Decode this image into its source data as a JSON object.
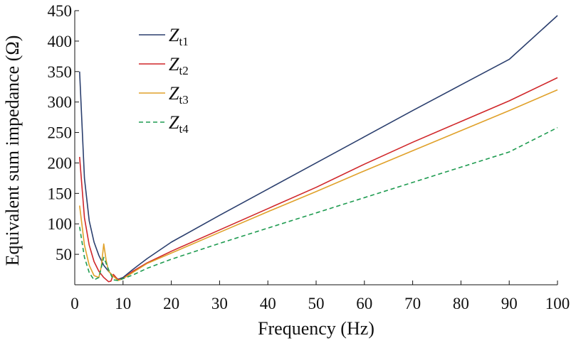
{
  "chart_data": {
    "type": "line",
    "xlabel": "Frequency (Hz)",
    "ylabel": "Equivalent sum impedance (Ω)",
    "xlim": [
      0,
      100
    ],
    "ylim": [
      0,
      450
    ],
    "x_ticks": [
      0,
      10,
      20,
      30,
      40,
      50,
      60,
      70,
      80,
      90,
      100
    ],
    "y_ticks": [
      50,
      100,
      150,
      200,
      250,
      300,
      350,
      400,
      450
    ],
    "grid": false,
    "legend_position": "top-left",
    "series": [
      {
        "name": "Zt1",
        "legend_main": "Z",
        "legend_sub": "t1",
        "color": "#2b3f6e",
        "dash": "solid",
        "points": [
          [
            1,
            350
          ],
          [
            2,
            175
          ],
          [
            3,
            105
          ],
          [
            4,
            70
          ],
          [
            5,
            48
          ],
          [
            6,
            32
          ],
          [
            7,
            22
          ],
          [
            8,
            14
          ],
          [
            9,
            9
          ],
          [
            10,
            12
          ],
          [
            12,
            25
          ],
          [
            15,
            43
          ],
          [
            20,
            70
          ],
          [
            30,
            114
          ],
          [
            40,
            157
          ],
          [
            50,
            200
          ],
          [
            60,
            243
          ],
          [
            70,
            286
          ],
          [
            80,
            328
          ],
          [
            90,
            370
          ],
          [
            100,
            442
          ]
        ]
      },
      {
        "name": "Zt2",
        "legend_main": "Z",
        "legend_sub": "t2",
        "color": "#d0272a",
        "dash": "solid",
        "points": [
          [
            1,
            210
          ],
          [
            2,
            110
          ],
          [
            3,
            65
          ],
          [
            4,
            38
          ],
          [
            5,
            22
          ],
          [
            6,
            12
          ],
          [
            7,
            5
          ],
          [
            7.5,
            6
          ],
          [
            8,
            17
          ],
          [
            9,
            8
          ],
          [
            10,
            10
          ],
          [
            12,
            22
          ],
          [
            15,
            36
          ],
          [
            20,
            55
          ],
          [
            30,
            90
          ],
          [
            40,
            125
          ],
          [
            50,
            160
          ],
          [
            60,
            198
          ],
          [
            70,
            234
          ],
          [
            80,
            268
          ],
          [
            90,
            302
          ],
          [
            100,
            340
          ]
        ]
      },
      {
        "name": "Zt3",
        "legend_main": "Z",
        "legend_sub": "t3",
        "color": "#e0a12a",
        "dash": "solid",
        "points": [
          [
            1,
            130
          ],
          [
            2,
            65
          ],
          [
            3,
            32
          ],
          [
            4,
            15
          ],
          [
            5,
            12
          ],
          [
            5.5,
            30
          ],
          [
            6,
            67
          ],
          [
            6.5,
            40
          ],
          [
            7,
            22
          ],
          [
            8,
            14
          ],
          [
            9,
            7
          ],
          [
            10,
            10
          ],
          [
            12,
            20
          ],
          [
            15,
            35
          ],
          [
            20,
            52
          ],
          [
            30,
            86
          ],
          [
            40,
            120
          ],
          [
            50,
            153
          ],
          [
            60,
            187
          ],
          [
            70,
            220
          ],
          [
            80,
            253
          ],
          [
            90,
            286
          ],
          [
            100,
            320
          ]
        ]
      },
      {
        "name": "Zt4",
        "legend_main": "Z",
        "legend_sub": "t4",
        "color": "#1e9b50",
        "dash": "dashed",
        "points": [
          [
            1,
            95
          ],
          [
            2,
            45
          ],
          [
            3,
            20
          ],
          [
            4,
            8
          ],
          [
            5,
            12
          ],
          [
            6,
            45
          ],
          [
            7,
            25
          ],
          [
            8,
            8
          ],
          [
            9,
            7
          ],
          [
            10,
            10
          ],
          [
            12,
            16
          ],
          [
            15,
            27
          ],
          [
            20,
            42
          ],
          [
            30,
            68
          ],
          [
            40,
            93
          ],
          [
            50,
            118
          ],
          [
            60,
            143
          ],
          [
            70,
            168
          ],
          [
            80,
            193
          ],
          [
            90,
            218
          ],
          [
            100,
            258
          ]
        ]
      }
    ]
  }
}
